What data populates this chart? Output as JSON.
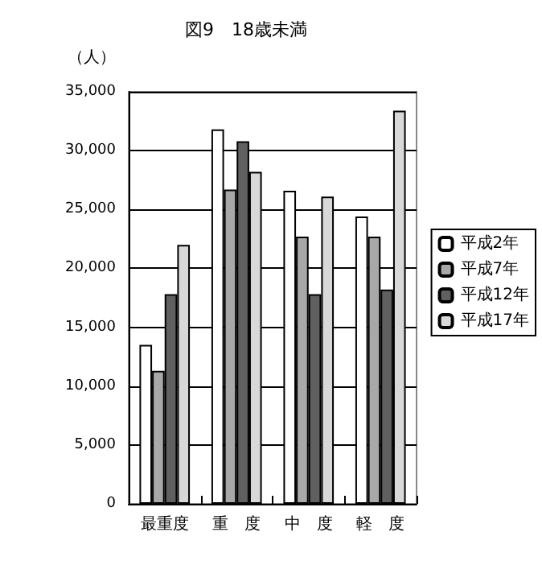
{
  "chart_data": {
    "type": "bar",
    "title": "図9　18歳未満",
    "ylabel": "（人）",
    "categories": [
      "最重度",
      "重　度",
      "中　度",
      "軽　度"
    ],
    "series": [
      {
        "name": "平成2年",
        "color": "#ffffff",
        "values": [
          13500,
          31800,
          26600,
          24400
        ]
      },
      {
        "name": "平成7年",
        "color": "#a8a8a8",
        "values": [
          11300,
          26700,
          22700,
          22700
        ]
      },
      {
        "name": "平成12年",
        "color": "#606060",
        "values": [
          17800,
          30800,
          17800,
          18200
        ]
      },
      {
        "name": "平成17年",
        "color": "#d8d8d8",
        "values": [
          22000,
          28200,
          26100,
          33400
        ]
      }
    ],
    "ylim": [
      0,
      35000
    ],
    "yticks": [
      {
        "value": 0,
        "label": "0"
      },
      {
        "value": 5000,
        "label": "5,000"
      },
      {
        "value": 10000,
        "label": "10,000"
      },
      {
        "value": 15000,
        "label": "15,000"
      },
      {
        "value": 20000,
        "label": "20,000"
      },
      {
        "value": 25000,
        "label": "25,000"
      },
      {
        "value": 30000,
        "label": "30,000"
      },
      {
        "value": 35000,
        "label": "35,000"
      }
    ],
    "grid": "y",
    "legend": "right"
  }
}
